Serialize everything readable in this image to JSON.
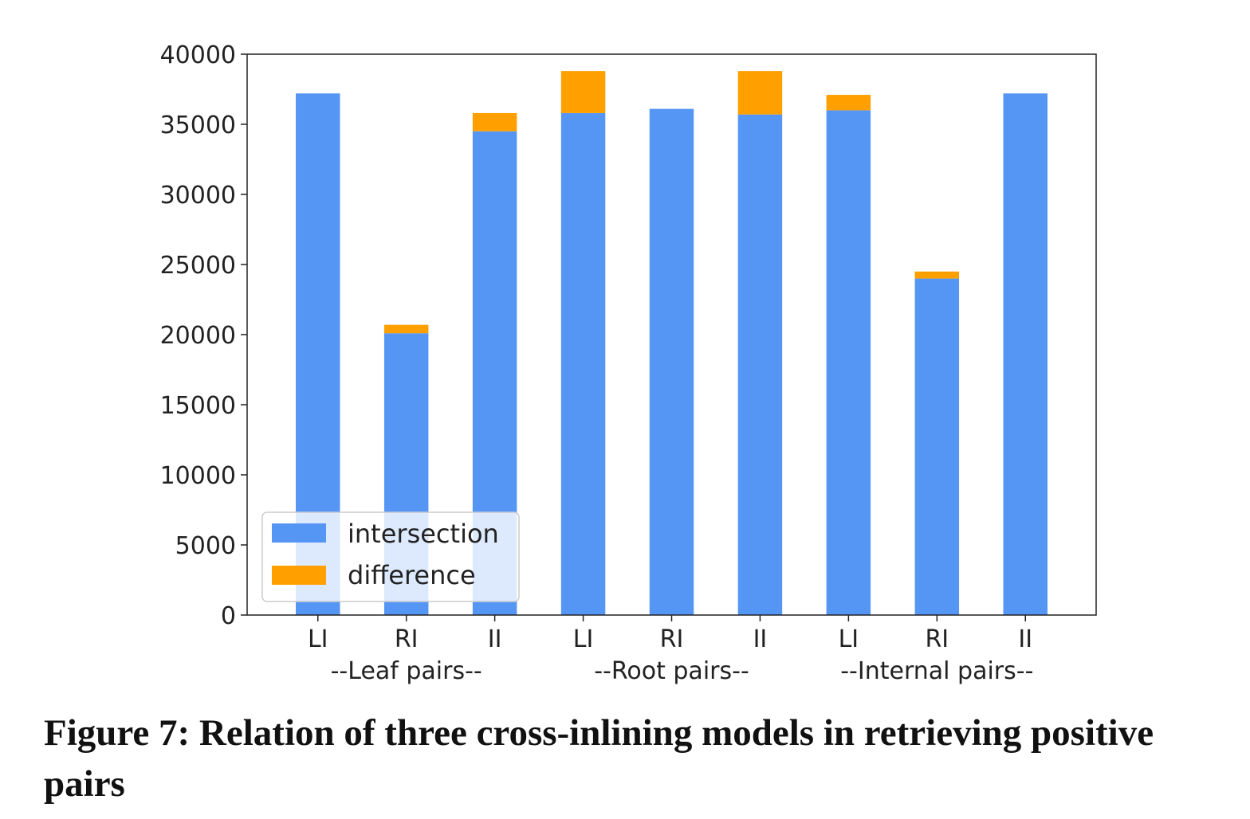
{
  "chart_data": {
    "type": "bar",
    "stacked": true,
    "categories": [
      "LI",
      "RI",
      "II",
      "LI",
      "RI",
      "II",
      "LI",
      "RI",
      "II"
    ],
    "groups": [
      "--Leaf pairs--",
      "--Root pairs--",
      "--Internal pairs--"
    ],
    "series": [
      {
        "name": "intersection",
        "color": "#5596f5",
        "values": [
          37200,
          20100,
          34500,
          35800,
          36100,
          35700,
          36000,
          24000,
          37200
        ]
      },
      {
        "name": "difference",
        "color": "#ffa000",
        "values": [
          0,
          600,
          1300,
          3000,
          0,
          3100,
          1100,
          500,
          0
        ]
      }
    ],
    "ylim": [
      0,
      40000
    ],
    "yticks": [
      "0",
      "5000",
      "10000",
      "15000",
      "20000",
      "25000",
      "30000",
      "35000",
      "40000"
    ],
    "legend_position": "lower-left",
    "grid": false
  },
  "caption": "Figure 7: Relation of three cross-inlining models in retrieving positive pairs"
}
